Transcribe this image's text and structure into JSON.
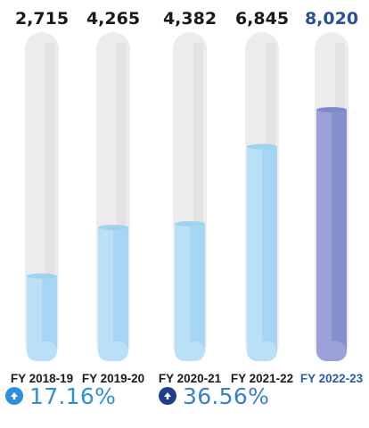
{
  "chart_data": {
    "type": "bar",
    "categories": [
      "FY 2018-19",
      "FY 2019-20",
      "FY 2020-21",
      "FY 2021-22",
      "FY 2022-23"
    ],
    "values": [
      2715,
      4265,
      4382,
      6845,
      8020
    ],
    "value_labels": [
      "2,715",
      "4,265",
      "4,382",
      "6,845",
      "8,020"
    ],
    "ylim": [
      0,
      10500
    ],
    "grid": false,
    "legend": "none",
    "colors": {
      "fill_default": "#b9e0f7",
      "fill_default_edge": "#9dd2f1",
      "fill_highlight": "#9aa2d8",
      "fill_highlight_edge": "#7f89cc",
      "tube": "#ececec",
      "tube_edge": "#dadada",
      "label_default": "#1a1a1a",
      "label_highlight": "#2a4f97"
    },
    "highlight_index": 4
  },
  "growth": [
    {
      "value": "17.16%",
      "icon": "up-arrow-circle-icon",
      "color": "#2d90d9"
    },
    {
      "value": "36.56%",
      "icon": "up-arrow-circle-icon",
      "color": "#1f3e86"
    }
  ]
}
